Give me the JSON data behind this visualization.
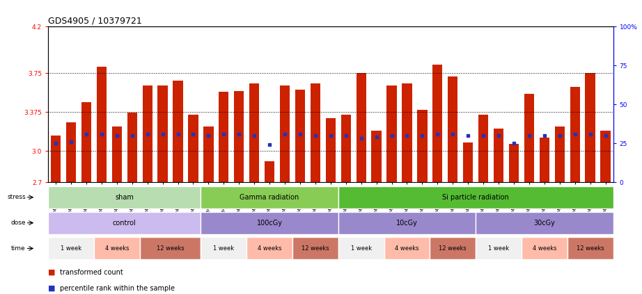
{
  "title": "GDS4905 / 10379721",
  "samples": [
    "GSM1176963",
    "GSM1176964",
    "GSM1176965",
    "GSM1176975",
    "GSM1176976",
    "GSM1176977",
    "GSM1176978",
    "GSM1176988",
    "GSM1176989",
    "GSM1176990",
    "GSM1176954",
    "GSM1176955",
    "GSM1176956",
    "GSM1176966",
    "GSM1176967",
    "GSM1176968",
    "GSM1176979",
    "GSM1176980",
    "GSM1176981",
    "GSM1176960",
    "GSM1176961",
    "GSM1176962",
    "GSM1176972",
    "GSM1176973",
    "GSM1176974",
    "GSM1176985",
    "GSM1176986",
    "GSM1176987",
    "GSM1176957",
    "GSM1176958",
    "GSM1176959",
    "GSM1176969",
    "GSM1176970",
    "GSM1176971",
    "GSM1176982",
    "GSM1176983",
    "GSM1176984"
  ],
  "bar_heights": [
    3.15,
    3.28,
    3.47,
    3.81,
    3.24,
    3.37,
    3.63,
    3.63,
    3.68,
    3.35,
    3.24,
    3.57,
    3.58,
    3.65,
    2.9,
    3.63,
    3.59,
    3.65,
    3.32,
    3.35,
    3.75,
    3.2,
    3.63,
    3.65,
    3.4,
    3.83,
    3.72,
    3.08,
    3.35,
    3.22,
    3.07,
    3.55,
    3.13,
    3.24,
    3.62,
    3.75,
    3.2
  ],
  "percentile_ranks": [
    25,
    26,
    31,
    31,
    30,
    30,
    31,
    31,
    31,
    31,
    30,
    31,
    31,
    30,
    24,
    31,
    31,
    30,
    30,
    30,
    28,
    29,
    30,
    30,
    30,
    31,
    31,
    30,
    30,
    30,
    25,
    30,
    30,
    30,
    31,
    31,
    30
  ],
  "ylim_left": [
    2.7,
    4.2
  ],
  "ylim_right": [
    0,
    100
  ],
  "yticks_left": [
    2.7,
    3.0,
    3.375,
    3.75,
    4.2
  ],
  "yticks_right": [
    0,
    25,
    50,
    75,
    100
  ],
  "hlines": [
    3.0,
    3.375,
    3.75
  ],
  "bar_color": "#cc2200",
  "dot_color": "#2233bb",
  "bar_bottom": 2.7,
  "stress_groups": [
    {
      "label": "sham",
      "start": 0,
      "end": 10,
      "color": "#b8ddb0"
    },
    {
      "label": "Gamma radiation",
      "start": 10,
      "end": 19,
      "color": "#88cc55"
    },
    {
      "label": "Si particle radiation",
      "start": 19,
      "end": 37,
      "color": "#55bb33"
    }
  ],
  "dose_groups": [
    {
      "label": "control",
      "start": 0,
      "end": 10,
      "color": "#ccbbee"
    },
    {
      "label": "100cGy",
      "start": 10,
      "end": 19,
      "color": "#9988cc"
    },
    {
      "label": "10cGy",
      "start": 19,
      "end": 28,
      "color": "#9988cc"
    },
    {
      "label": "30cGy",
      "start": 28,
      "end": 37,
      "color": "#9988cc"
    }
  ],
  "time_groups": [
    {
      "label": "1 week",
      "start": 0,
      "end": 3,
      "color": "#f0f0f0"
    },
    {
      "label": "4 weeks",
      "start": 3,
      "end": 6,
      "color": "#ffbbaa"
    },
    {
      "label": "12 weeks",
      "start": 6,
      "end": 10,
      "color": "#cc7766"
    },
    {
      "label": "1 week",
      "start": 10,
      "end": 13,
      "color": "#f0f0f0"
    },
    {
      "label": "4 weeks",
      "start": 13,
      "end": 16,
      "color": "#ffbbaa"
    },
    {
      "label": "12 weeks",
      "start": 16,
      "end": 19,
      "color": "#cc7766"
    },
    {
      "label": "1 week",
      "start": 19,
      "end": 22,
      "color": "#f0f0f0"
    },
    {
      "label": "4 weeks",
      "start": 22,
      "end": 25,
      "color": "#ffbbaa"
    },
    {
      "label": "12 weeks",
      "start": 25,
      "end": 28,
      "color": "#cc7766"
    },
    {
      "label": "1 week",
      "start": 28,
      "end": 31,
      "color": "#f0f0f0"
    },
    {
      "label": "4 weeks",
      "start": 31,
      "end": 34,
      "color": "#ffbbaa"
    },
    {
      "label": "12 weeks",
      "start": 34,
      "end": 37,
      "color": "#cc7766"
    }
  ],
  "bg_color": "#ffffff",
  "grid_color": "#888888",
  "title_fontsize": 9,
  "tick_fontsize": 6.5,
  "strip_fontsize": 7,
  "time_fontsize": 6
}
